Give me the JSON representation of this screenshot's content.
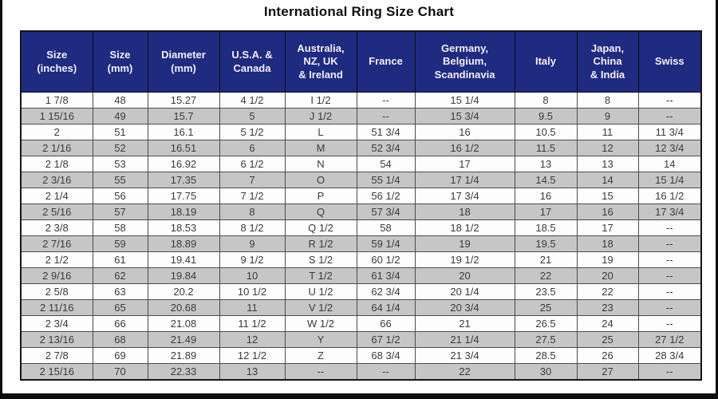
{
  "title": "International Ring Size Chart",
  "colors": {
    "header_bg": "#1e2b80",
    "header_text": "#ffffff",
    "row_shaded": "#c6c6c6",
    "row_plain": "#ffffff",
    "frame": "#0d0d0d"
  },
  "chart_data": {
    "type": "table",
    "title": "International Ring Size Chart",
    "columns": [
      "Size\n(inches)",
      "Size\n(mm)",
      "Diameter\n(mm)",
      "U.S.A. &\nCanada",
      "Australia,\nNZ, UK\n& Ireland",
      "France",
      "Germany,\nBelgium,\nScandinavia",
      "Italy",
      "Japan,\nChina\n& India",
      "Swiss"
    ],
    "rows": [
      [
        "1 7/8",
        "48",
        "15.27",
        "4 1/2",
        "I 1/2",
        "--",
        "15 1/4",
        "8",
        "8",
        "--"
      ],
      [
        "1 15/16",
        "49",
        "15.7",
        "5",
        "J 1/2",
        "--",
        "15 3/4",
        "9.5",
        "9",
        "--"
      ],
      [
        "2",
        "51",
        "16.1",
        "5 1/2",
        "L",
        "51 3/4",
        "16",
        "10.5",
        "11",
        "11 3/4"
      ],
      [
        "2 1/16",
        "52",
        "16.51",
        "6",
        "M",
        "52 3/4",
        "16 1/2",
        "11.5",
        "12",
        "12 3/4"
      ],
      [
        "2 1/8",
        "53",
        "16.92",
        "6 1/2",
        "N",
        "54",
        "17",
        "13",
        "13",
        "14"
      ],
      [
        "2 3/16",
        "55",
        "17.35",
        "7",
        "O",
        "55 1/4",
        "17 1/4",
        "14.5",
        "14",
        "15 1/4"
      ],
      [
        "2 1/4",
        "56",
        "17.75",
        "7 1/2",
        "P",
        "56 1/2",
        "17 3/4",
        "16",
        "15",
        "16 1/2"
      ],
      [
        "2 5/16",
        "57",
        "18.19",
        "8",
        "Q",
        "57 3/4",
        "18",
        "17",
        "16",
        "17 3/4"
      ],
      [
        "2 3/8",
        "58",
        "18.53",
        "8 1/2",
        "Q 1/2",
        "58",
        "18 1/2",
        "18.5",
        "17",
        "--"
      ],
      [
        "2 7/16",
        "59",
        "18.89",
        "9",
        "R 1/2",
        "59 1/4",
        "19",
        "19.5",
        "18",
        "--"
      ],
      [
        "2 1/2",
        "61",
        "19.41",
        "9 1/2",
        "S 1/2",
        "60 1/2",
        "19 1/2",
        "21",
        "19",
        "--"
      ],
      [
        "2 9/16",
        "62",
        "19.84",
        "10",
        "T 1/2",
        "61 3/4",
        "20",
        "22",
        "20",
        "--"
      ],
      [
        "2 5/8",
        "63",
        "20.2",
        "10 1/2",
        "U 1/2",
        "62 3/4",
        "20 1/4",
        "23.5",
        "22",
        "--"
      ],
      [
        "2 11/16",
        "65",
        "20.68",
        "11",
        "V 1/2",
        "64 1/4",
        "20 3/4",
        "25",
        "23",
        "--"
      ],
      [
        "2 3/4",
        "66",
        "21.08",
        "11 1/2",
        "W 1/2",
        "66",
        "21",
        "26.5",
        "24",
        "--"
      ],
      [
        "2 13/16",
        "68",
        "21.49",
        "12",
        "Y",
        "67 1/2",
        "21 1/4",
        "27.5",
        "25",
        "27 1/2"
      ],
      [
        "2 7/8",
        "69",
        "21.89",
        "12 1/2",
        "Z",
        "68 3/4",
        "21 3/4",
        "28.5",
        "26",
        "28 3/4"
      ],
      [
        "2 15/16",
        "70",
        "22.33",
        "13",
        "--",
        "--",
        "22",
        "30",
        "27",
        "--"
      ]
    ]
  }
}
